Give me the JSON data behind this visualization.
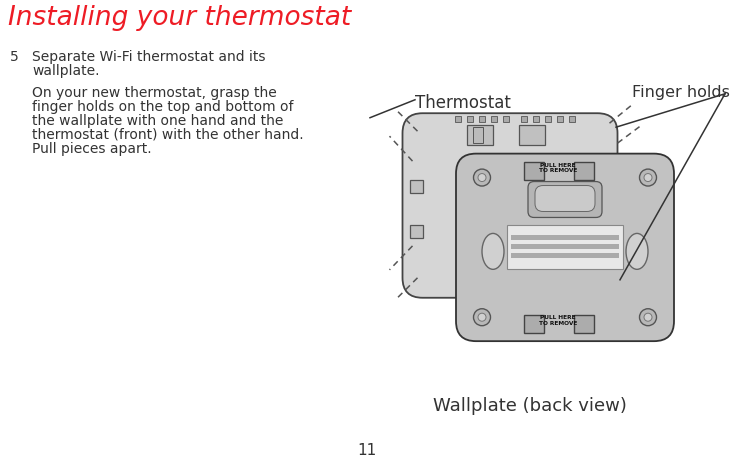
{
  "title": "Installing your thermostat",
  "title_color": "#ee1c25",
  "title_fontsize": 19,
  "step_number": "5",
  "step_text_line1": "Separate Wi-Fi thermostat and its",
  "step_text_line2": "wallplate.",
  "body_text": "On your new thermostat, grasp the\nfinger holds on the top and bottom of\nthe wallplate with one hand and the\nthermostat (front) with the other hand.\nPull pieces apart.",
  "label_thermostat": "Thermostat",
  "label_wallplate": "Wallplate (back view)",
  "label_finger_holds": "Finger holds",
  "label_pull_top": "PULL HERE\nTO REMOVE",
  "label_pull_bottom": "PULL HERE\nTO REMOVE",
  "page_number": "11",
  "bg_color": "#ffffff",
  "text_color": "#333333"
}
